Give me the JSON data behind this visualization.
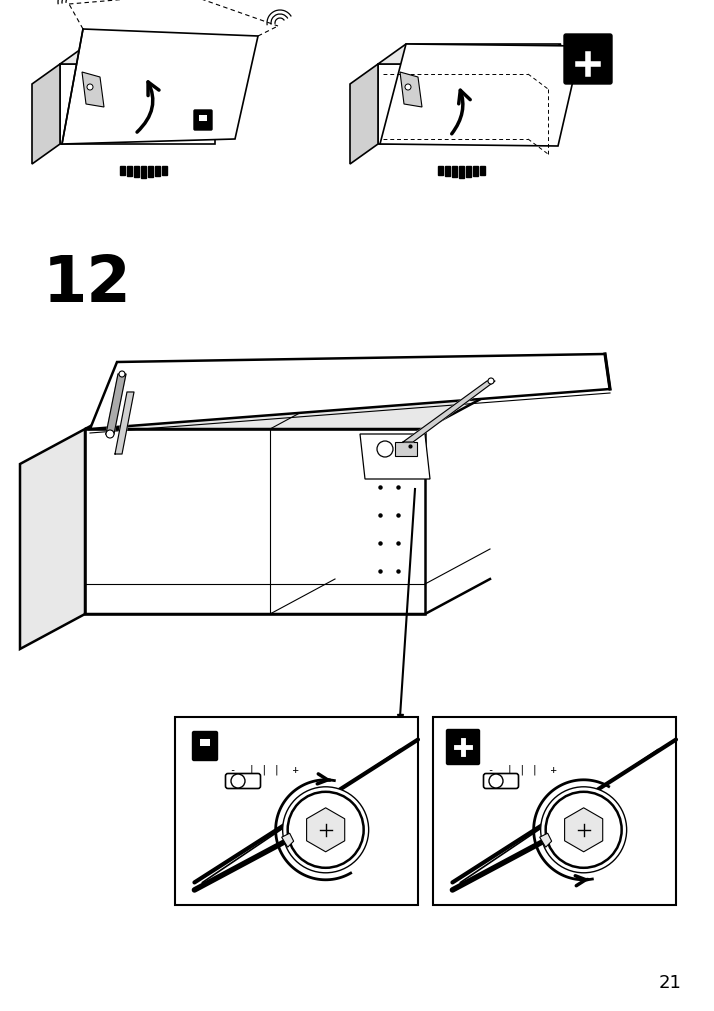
{
  "page_number": "21",
  "step_number": "12",
  "bg_color": "#ffffff",
  "line_color": "#000000",
  "gray_light": "#e8e8e8",
  "gray_mid": "#d0d0d0",
  "gray_dark": "#aaaaaa"
}
